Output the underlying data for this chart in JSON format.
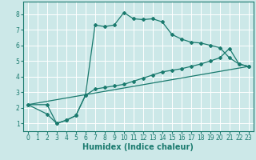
{
  "xlabel": "Humidex (Indice chaleur)",
  "background_color": "#cce8e8",
  "grid_color": "#ffffff",
  "line_color": "#1a7a6e",
  "xlim": [
    -0.5,
    23.5
  ],
  "ylim": [
    0.5,
    8.8
  ],
  "xticks": [
    0,
    1,
    2,
    3,
    4,
    5,
    6,
    7,
    8,
    9,
    10,
    11,
    12,
    13,
    14,
    15,
    16,
    17,
    18,
    19,
    20,
    21,
    22,
    23
  ],
  "yticks": [
    1,
    2,
    3,
    4,
    5,
    6,
    7,
    8
  ],
  "curve1_x": [
    0,
    2,
    3,
    4,
    5,
    6,
    7,
    8,
    9,
    10,
    11,
    12,
    13,
    14,
    15,
    16,
    17,
    18,
    19,
    20,
    21,
    22,
    23
  ],
  "curve1_y": [
    2.2,
    2.2,
    1.0,
    1.2,
    1.5,
    2.8,
    7.3,
    7.2,
    7.3,
    8.1,
    7.7,
    7.65,
    7.7,
    7.5,
    6.7,
    6.4,
    6.2,
    6.15,
    6.0,
    5.85,
    5.2,
    4.8,
    4.65
  ],
  "curve2_x": [
    0,
    2,
    3,
    4,
    5,
    6,
    7,
    8,
    9,
    10,
    11,
    12,
    13,
    14,
    15,
    16,
    17,
    18,
    19,
    20,
    21,
    22,
    23
  ],
  "curve2_y": [
    2.2,
    1.6,
    1.0,
    1.2,
    1.5,
    2.8,
    3.2,
    3.3,
    3.4,
    3.5,
    3.7,
    3.9,
    4.1,
    4.3,
    4.4,
    4.5,
    4.65,
    4.8,
    5.0,
    5.2,
    5.8,
    4.8,
    4.65
  ],
  "curve3_x": [
    0,
    23
  ],
  "curve3_y": [
    2.2,
    4.65
  ],
  "xlabel_fontsize": 7,
  "tick_fontsize": 5.5
}
